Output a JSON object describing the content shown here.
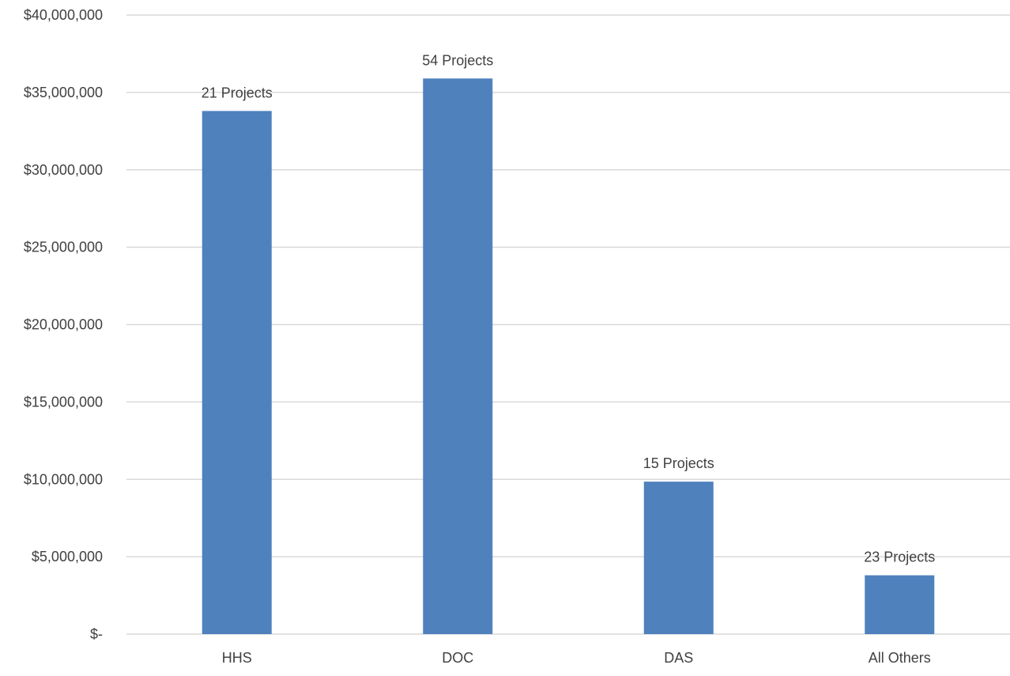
{
  "chart_data": {
    "type": "bar",
    "categories": [
      "HHS",
      "DOC",
      "DAS",
      "All Others"
    ],
    "values": [
      33800000,
      35900000,
      9850000,
      3800000
    ],
    "data_labels": [
      "21 Projects",
      "54 Projects",
      "15 Projects",
      "23 Projects"
    ],
    "ylim": [
      0,
      40000000
    ],
    "yticks": [
      0,
      5000000,
      10000000,
      15000000,
      20000000,
      25000000,
      30000000,
      35000000,
      40000000
    ],
    "ytick_labels": [
      "$-",
      "$5,000,000",
      "$10,000,000",
      "$15,000,000",
      "$20,000,000",
      "$25,000,000",
      "$30,000,000",
      "$35,000,000",
      "$40,000,000"
    ],
    "grid": true,
    "legend": "none",
    "colors": {
      "bar": "#4f81bd",
      "grid": "#d9d9d9",
      "text": "#404040"
    }
  }
}
